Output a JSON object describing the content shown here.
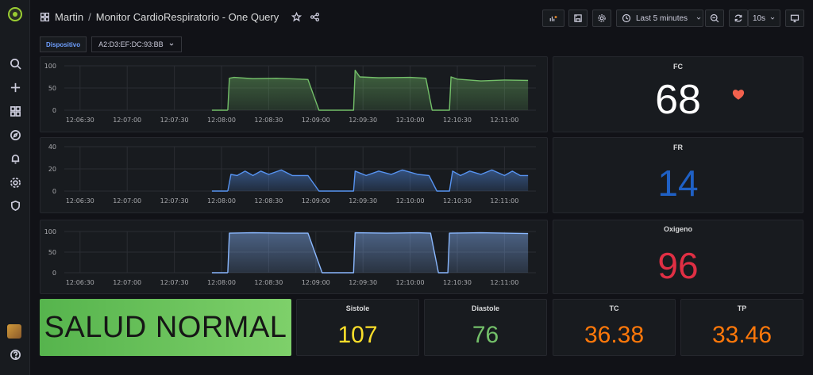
{
  "header": {
    "folder": "Martin",
    "separator": "/",
    "dashboard_title": "Monitor CardioRespiratorio - One Query",
    "time_range": "Last 5 minutes",
    "refresh_interval": "10s"
  },
  "variables": {
    "label": "Dispositivo",
    "value": "A2:D3:EF:DC:93:BB"
  },
  "sidebar": {
    "icons": [
      "search-icon",
      "plus-icon",
      "dashboards-icon",
      "explore-icon",
      "alerting-icon",
      "settings-icon",
      "shield-icon",
      "help-icon"
    ]
  },
  "colors": {
    "hr_green": "#73bf69",
    "fr_blue": "#1f60c4",
    "oxy_red": "#e02f44",
    "sistole_yellow": "#fade2a",
    "diastole_green": "#73bf69",
    "temp_orange": "#ff780a",
    "heart": "#f2614d"
  },
  "stats": {
    "fc": {
      "title": "FC",
      "value": "68"
    },
    "fr": {
      "title": "FR",
      "value": "14"
    },
    "oxigeno": {
      "title": "Oxigeno",
      "value": "96"
    },
    "sistole": {
      "title": "Sistole",
      "value": "107"
    },
    "diastole": {
      "title": "Diastole",
      "value": "76"
    },
    "tc": {
      "title": "TC",
      "value": "36.38"
    },
    "tp": {
      "title": "TP",
      "value": "33.46"
    }
  },
  "status": {
    "text": "SALUD NORMAL"
  },
  "chart_data": [
    {
      "type": "area",
      "series": [
        {
          "name": "",
          "color": "#73bf69"
        }
      ],
      "x_ticks": [
        "12:06:30",
        "12:07:00",
        "12:07:30",
        "12:08:00",
        "12:08:30",
        "12:09:00",
        "12:09:30",
        "12:10:00",
        "12:10:30",
        "12:11:00"
      ],
      "y_ticks": [
        "100",
        "50",
        "0"
      ],
      "ylim": [
        0,
        100
      ],
      "points": [
        [
          "12:08:04",
          0
        ],
        [
          "12:08:05",
          72
        ],
        [
          "12:08:08",
          74
        ],
        [
          "12:08:20",
          71
        ],
        [
          "12:08:35",
          72
        ],
        [
          "12:08:50",
          70
        ],
        [
          "12:08:55",
          69
        ],
        [
          "12:09:02",
          0
        ],
        [
          "12:09:24",
          0
        ],
        [
          "12:09:25",
          90
        ],
        [
          "12:09:28",
          75
        ],
        [
          "12:09:40",
          73
        ],
        [
          "12:10:00",
          74
        ],
        [
          "12:10:10",
          72
        ],
        [
          "12:10:14",
          0
        ],
        [
          "12:10:25",
          0
        ],
        [
          "12:10:26",
          75
        ],
        [
          "12:10:30",
          70
        ],
        [
          "12:10:45",
          66
        ],
        [
          "12:11:00",
          68
        ],
        [
          "12:11:15",
          67
        ]
      ]
    },
    {
      "type": "area",
      "series": [
        {
          "name": "",
          "color": "#5794f2"
        }
      ],
      "x_ticks": [
        "12:06:30",
        "12:07:00",
        "12:07:30",
        "12:08:00",
        "12:08:30",
        "12:09:00",
        "12:09:30",
        "12:10:00",
        "12:10:30",
        "12:11:00"
      ],
      "y_ticks": [
        "40",
        "20",
        "0"
      ],
      "ylim": [
        0,
        40
      ],
      "points": [
        [
          "12:08:04",
          0
        ],
        [
          "12:08:06",
          15
        ],
        [
          "12:08:10",
          14
        ],
        [
          "12:08:15",
          18
        ],
        [
          "12:08:20",
          14
        ],
        [
          "12:08:25",
          18
        ],
        [
          "12:08:30",
          15
        ],
        [
          "12:08:38",
          19
        ],
        [
          "12:08:45",
          14
        ],
        [
          "12:08:55",
          14
        ],
        [
          "12:09:02",
          0
        ],
        [
          "12:09:24",
          0
        ],
        [
          "12:09:25",
          18
        ],
        [
          "12:09:32",
          14
        ],
        [
          "12:09:40",
          18
        ],
        [
          "12:09:48",
          15
        ],
        [
          "12:09:55",
          19
        ],
        [
          "12:10:05",
          15
        ],
        [
          "12:10:12",
          14
        ],
        [
          "12:10:17",
          0
        ],
        [
          "12:10:25",
          0
        ],
        [
          "12:10:27",
          18
        ],
        [
          "12:10:32",
          14
        ],
        [
          "12:10:38",
          18
        ],
        [
          "12:10:45",
          15
        ],
        [
          "12:10:52",
          19
        ],
        [
          "12:11:00",
          14
        ],
        [
          "12:11:05",
          18
        ],
        [
          "12:11:10",
          14
        ],
        [
          "12:11:15",
          14
        ]
      ]
    },
    {
      "type": "area",
      "series": [
        {
          "name": "",
          "color": "#8ab8ff"
        }
      ],
      "x_ticks": [
        "12:06:30",
        "12:07:00",
        "12:07:30",
        "12:08:00",
        "12:08:30",
        "12:09:00",
        "12:09:30",
        "12:10:00",
        "12:10:30",
        "12:11:00"
      ],
      "y_ticks": [
        "100",
        "50",
        "0"
      ],
      "ylim": [
        0,
        100
      ],
      "points": [
        [
          "12:08:04",
          0
        ],
        [
          "12:08:05",
          96
        ],
        [
          "12:08:20",
          97
        ],
        [
          "12:08:40",
          96
        ],
        [
          "12:08:55",
          96
        ],
        [
          "12:09:04",
          0
        ],
        [
          "12:09:24",
          0
        ],
        [
          "12:09:25",
          97
        ],
        [
          "12:09:45",
          96
        ],
        [
          "12:10:05",
          97
        ],
        [
          "12:10:13",
          96
        ],
        [
          "12:10:18",
          0
        ],
        [
          "12:10:24",
          0
        ],
        [
          "12:10:25",
          96
        ],
        [
          "12:10:45",
          97
        ],
        [
          "12:11:00",
          96
        ],
        [
          "12:11:15",
          95
        ]
      ]
    }
  ]
}
